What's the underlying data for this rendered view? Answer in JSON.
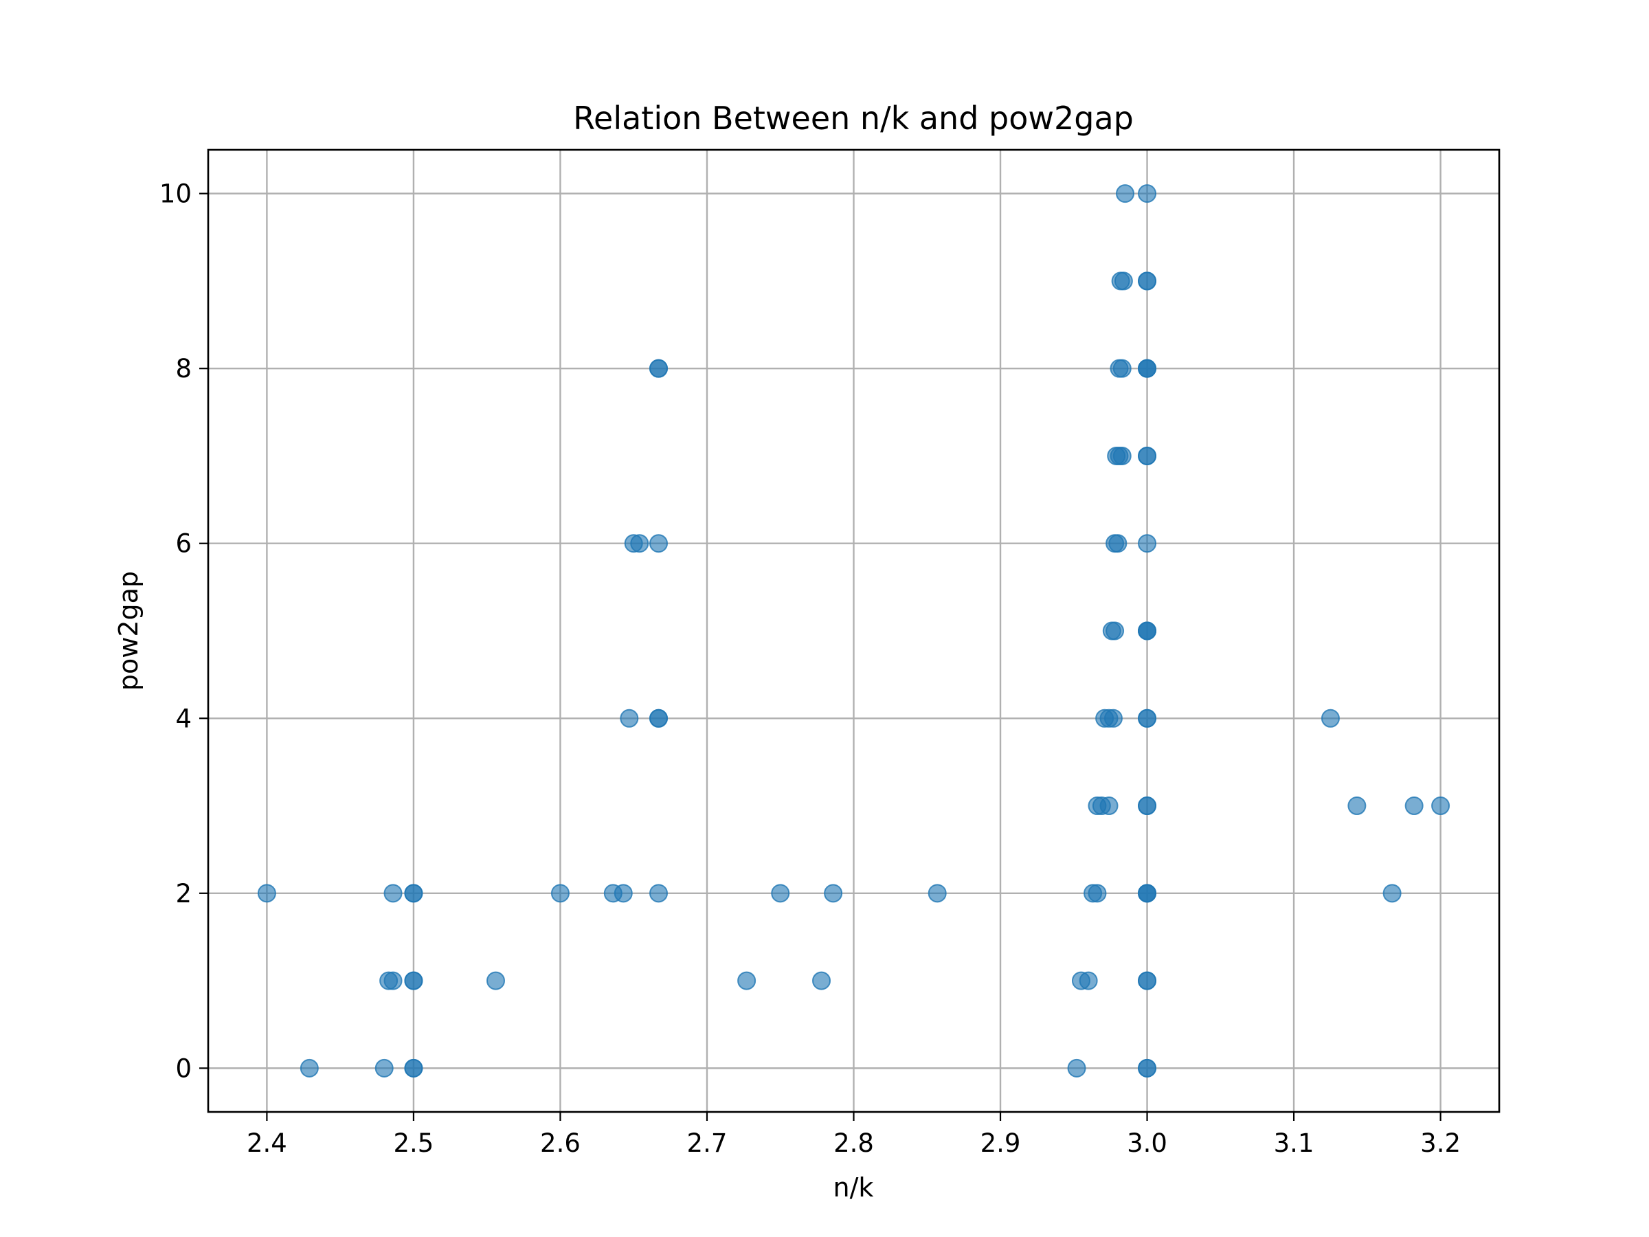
{
  "chart_data": {
    "type": "scatter",
    "title": "Relation Between n/k and pow2gap",
    "xlabel": "n/k",
    "ylabel": "pow2gap",
    "xlim": [
      2.36,
      3.24
    ],
    "ylim": [
      -0.5,
      10.5
    ],
    "xticks": [
      2.4,
      2.5,
      2.6,
      2.7,
      2.8,
      2.9,
      3.0,
      3.1,
      3.2
    ],
    "xtick_labels": [
      "2.4",
      "2.5",
      "2.6",
      "2.7",
      "2.8",
      "2.9",
      "3.0",
      "3.1",
      "3.2"
    ],
    "yticks": [
      0,
      2,
      4,
      6,
      8,
      10
    ],
    "ytick_labels": [
      "0",
      "2",
      "4",
      "6",
      "8",
      "10"
    ],
    "grid": true,
    "marker_color": "#1f77b4",
    "marker_alpha": 0.6,
    "series": [
      {
        "points": [
          [
            2.4,
            2
          ],
          [
            2.429,
            0
          ],
          [
            2.48,
            0
          ],
          [
            2.5,
            0
          ],
          [
            2.5,
            0
          ],
          [
            2.483,
            1
          ],
          [
            2.486,
            1
          ],
          [
            2.5,
            1
          ],
          [
            2.5,
            1
          ],
          [
            2.486,
            2
          ],
          [
            2.5,
            2
          ],
          [
            2.5,
            2
          ],
          [
            2.556,
            1
          ],
          [
            2.6,
            2
          ],
          [
            2.636,
            2
          ],
          [
            2.643,
            2
          ],
          [
            2.667,
            2
          ],
          [
            2.647,
            4
          ],
          [
            2.667,
            4
          ],
          [
            2.667,
            4
          ],
          [
            2.65,
            6
          ],
          [
            2.654,
            6
          ],
          [
            2.667,
            6
          ],
          [
            2.667,
            8
          ],
          [
            2.667,
            8
          ],
          [
            2.727,
            1
          ],
          [
            2.75,
            2
          ],
          [
            2.778,
            1
          ],
          [
            2.786,
            2
          ],
          [
            2.857,
            2
          ],
          [
            2.952,
            0
          ],
          [
            2.955,
            1
          ],
          [
            2.96,
            1
          ],
          [
            2.963,
            2
          ],
          [
            2.966,
            2
          ],
          [
            2.966,
            3
          ],
          [
            2.969,
            3
          ],
          [
            2.974,
            3
          ],
          [
            2.971,
            4
          ],
          [
            2.974,
            4
          ],
          [
            2.977,
            4
          ],
          [
            2.976,
            5
          ],
          [
            2.978,
            5
          ],
          [
            2.978,
            6
          ],
          [
            2.98,
            6
          ],
          [
            2.979,
            7
          ],
          [
            2.981,
            7
          ],
          [
            2.983,
            7
          ],
          [
            2.981,
            8
          ],
          [
            2.983,
            8
          ],
          [
            2.982,
            9
          ],
          [
            2.984,
            9
          ],
          [
            2.985,
            10
          ],
          [
            3.0,
            0
          ],
          [
            3.0,
            0
          ],
          [
            3.0,
            1
          ],
          [
            3.0,
            1
          ],
          [
            3.0,
            2
          ],
          [
            3.0,
            2
          ],
          [
            3.0,
            2
          ],
          [
            3.0,
            3
          ],
          [
            3.0,
            3
          ],
          [
            3.0,
            4
          ],
          [
            3.0,
            4
          ],
          [
            3.0,
            5
          ],
          [
            3.0,
            5
          ],
          [
            3.0,
            5
          ],
          [
            3.0,
            6
          ],
          [
            3.0,
            7
          ],
          [
            3.0,
            7
          ],
          [
            3.0,
            8
          ],
          [
            3.0,
            8
          ],
          [
            3.0,
            8
          ],
          [
            3.0,
            9
          ],
          [
            3.0,
            9
          ],
          [
            3.0,
            10
          ],
          [
            3.125,
            4
          ],
          [
            3.143,
            3
          ],
          [
            3.167,
            2
          ],
          [
            3.182,
            3
          ],
          [
            3.2,
            3
          ]
        ]
      }
    ]
  }
}
